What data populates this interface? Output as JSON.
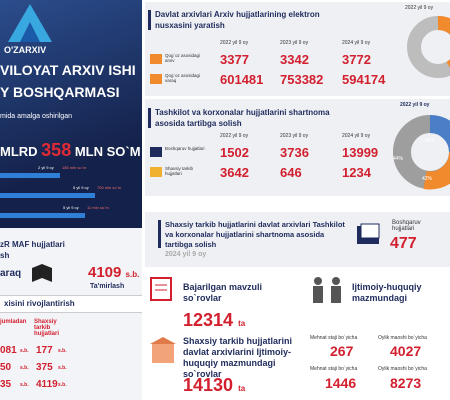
{
  "left": {
    "logo": "O'ZARXIV",
    "title_1": "VILOYAT ARXIV ISHI",
    "title_2": "Y BOSHQARMASI",
    "subtitle": "mida amalga oshirilgan",
    "total": {
      "prefix": "MLRD",
      "value": 358,
      "suffix": "MLN SO`M"
    },
    "bars": [
      {
        "label": "2 yil 9 oy",
        "value": "185 mln so`m"
      },
      {
        "label": "5 yil 9 oy",
        "value": "700 mln so`m"
      },
      {
        "label": "5 yil 9 oy",
        "value": "11 mln so`m"
      }
    ],
    "maf": {
      "title": "zR MAF hujjatlari",
      "subtitle": "sh",
      "left": "araq",
      "value": 4109,
      "unit": "s.b.",
      "caption": "Ta'mirlash"
    },
    "development": {
      "title": "xisini rivojlantirish",
      "col_1": "jumladan",
      "col_2": "Shaxsiy tarkib hujjatlari",
      "unit": "s.b.",
      "rows": [
        [
          "081",
          177
        ],
        [
          "50",
          375
        ],
        [
          "35",
          4119
        ]
      ]
    }
  },
  "digitize": {
    "title": "Davlat arxivlari Arxiv hujjatlarining elektron nusxasini yaratish",
    "legend": "2022 yil 9 oy",
    "years": [
      "2022 yil 9 oy",
      "2023 yil 9 oy",
      "2024 yil 9 oy"
    ],
    "rows": [
      {
        "label": "Qog`oz asosidagi arxiv",
        "values": [
          3377,
          3342,
          3772
        ]
      },
      {
        "label": "Qog`oz asosidagi varaq",
        "values": [
          601481,
          753382,
          594174
        ]
      }
    ]
  },
  "contract": {
    "title": "Tashkilot va korxonalar hujjatlarini shartnoma asosida tartibga solish",
    "legend": "2022 yil 9 oy",
    "years": [
      "2022 yil 9 oy",
      "2023 yil 9 oy",
      "2024 yil 9 oy"
    ],
    "rows": [
      {
        "label": "Boshqaruv hujjatlari",
        "values": [
          1502,
          3736,
          13999
        ]
      },
      {
        "label": "Shaxsiy tarkib hujjatlari",
        "values": [
          3642,
          646,
          1234
        ]
      }
    ],
    "donut_labels": [
      "34%",
      "44%",
      "42%"
    ]
  },
  "personal": {
    "title": "Shaxsiy tarkib hujjatlarini davlat arxivlari Tashkilot va korxonalar hujjatlarini shartnoma asosida tartibga solish",
    "period": "2024 yil 9 oy",
    "label": "Boshqaruv hujjatlari",
    "value": 477
  },
  "requests": {
    "title": "Bajarilgan mavzuli so`rovlar",
    "value": 12314,
    "unit": "ta"
  },
  "social": {
    "title": "Ijtimoiy-huquqiy mazmundagi",
    "col_1": "Mehnat staji bo`yicha",
    "col_2": "Oylik maoshi bo`yicha",
    "values": [
      267,
      4027
    ]
  },
  "social_2": {
    "title": "Shaxsiy tarkib hujjatlarini davlat arxivlarini Ijtimoiy-huquqiy mazmundagi so`rovlar",
    "value": 14130,
    "unit": "ta",
    "col_1": "Mehnat staji bo`yicha",
    "col_2": "Oylik maoshi bo`yicha",
    "values": [
      1446,
      8273
    ]
  }
}
